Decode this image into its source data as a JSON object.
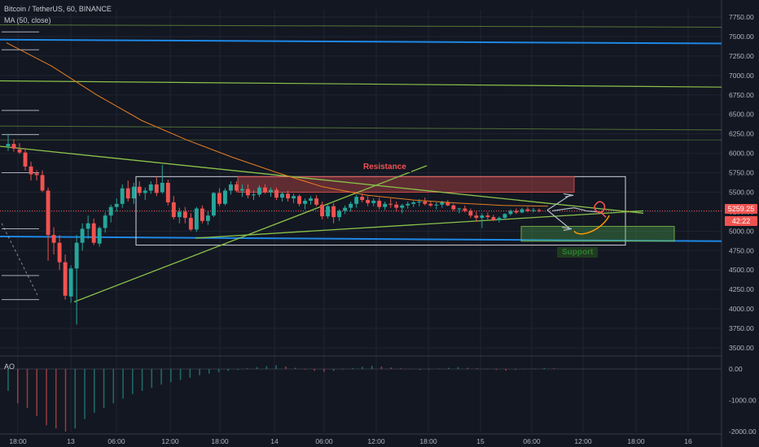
{
  "header": {
    "title": "Bitcoin / TetherUS, 60, BINANCE",
    "indicator": "MA (50, close)",
    "oscillator": "AO"
  },
  "price_axis": {
    "ticks": [
      "7750.00",
      "7500.00",
      "7250.00",
      "7000.00",
      "6750.00",
      "6500.00",
      "6250.00",
      "6000.00",
      "5750.00",
      "5500.00",
      "5250.00",
      "5000.00",
      "4750.00",
      "4500.00",
      "4250.00",
      "4000.00",
      "3750.00",
      "3500.00"
    ],
    "last_price": "5259.25",
    "countdown": "42:22"
  },
  "ao_axis": {
    "ticks": [
      "0.00",
      "-1000.00",
      "-2000.00"
    ]
  },
  "time_axis": {
    "ticks": [
      "18:00",
      "13",
      "06:00",
      "12:00",
      "18:00",
      "14",
      "06:00",
      "12:00",
      "18:00",
      "15",
      "06:00",
      "12:00",
      "18:00",
      "16"
    ]
  },
  "annotations": {
    "resistance": "Resistance",
    "support": "Support"
  },
  "colors": {
    "up": "#26a69a",
    "down": "#ef5350",
    "ma": "#e67e22",
    "trendline": "#8bc34a",
    "level": "#1e88e5",
    "background": "#131722"
  },
  "chart_data": {
    "type": "candlestick",
    "title": "Bitcoin / TetherUS, 60, BINANCE",
    "ylim": [
      3450,
      7850
    ],
    "x_ticks": [
      "18:00",
      "13",
      "06:00",
      "12:00",
      "18:00",
      "14",
      "06:00",
      "12:00",
      "18:00",
      "15",
      "06:00",
      "12:00",
      "18:00",
      "16"
    ],
    "series": [
      {
        "name": "MA (50, close)",
        "values": [
          7420,
          7120,
          6750,
          6420,
          6170,
          5950,
          5750,
          5570,
          5460,
          5400,
          5360,
          5330,
          5320
        ]
      }
    ],
    "candles": [
      [
        6090,
        6250,
        6030,
        6120
      ],
      [
        6120,
        6180,
        6020,
        6060
      ],
      [
        6050,
        6130,
        5990,
        6010
      ],
      [
        6010,
        6060,
        5780,
        5830
      ],
      [
        5830,
        5890,
        5650,
        5730
      ],
      [
        5740,
        5780,
        5650,
        5720
      ],
      [
        5720,
        5780,
        5500,
        5520
      ],
      [
        5520,
        5560,
        4620,
        4950
      ],
      [
        4950,
        5050,
        4700,
        4850
      ],
      [
        4850,
        4950,
        4500,
        4600
      ],
      [
        4600,
        4700,
        4120,
        4170
      ],
      [
        4160,
        4560,
        4080,
        4520
      ],
      [
        4520,
        4950,
        3800,
        4850
      ],
      [
        4850,
        5100,
        4750,
        5030
      ],
      [
        5030,
        5200,
        4900,
        5100
      ],
      [
        5100,
        5160,
        4820,
        4850
      ],
      [
        4840,
        5060,
        4800,
        5040
      ],
      [
        5040,
        5240,
        4980,
        5200
      ],
      [
        5200,
        5340,
        5110,
        5310
      ],
      [
        5310,
        5420,
        5250,
        5350
      ],
      [
        5350,
        5600,
        5300,
        5550
      ],
      [
        5550,
        5650,
        5380,
        5420
      ],
      [
        5420,
        5620,
        5350,
        5570
      ],
      [
        5570,
        5640,
        5450,
        5490
      ],
      [
        5490,
        5560,
        5400,
        5520
      ],
      [
        5520,
        5640,
        5480,
        5600
      ],
      [
        5600,
        5700,
        5450,
        5490
      ],
      [
        5500,
        5850,
        5480,
        5620
      ],
      [
        5620,
        5660,
        5330,
        5370
      ],
      [
        5370,
        5450,
        5150,
        5180
      ],
      [
        5180,
        5300,
        5100,
        5250
      ],
      [
        5250,
        5310,
        5100,
        5170
      ],
      [
        5170,
        5230,
        5000,
        5020
      ],
      [
        5020,
        5310,
        4990,
        5290
      ],
      [
        5290,
        5330,
        5100,
        5130
      ],
      [
        5130,
        5250,
        5080,
        5200
      ],
      [
        5200,
        5500,
        5180,
        5490
      ],
      [
        5490,
        5550,
        5320,
        5350
      ],
      [
        5350,
        5550,
        5330,
        5520
      ],
      [
        5520,
        5640,
        5470,
        5600
      ],
      [
        5600,
        5640,
        5500,
        5520
      ],
      [
        5520,
        5600,
        5440,
        5540
      ],
      [
        5540,
        5600,
        5420,
        5460
      ],
      [
        5460,
        5530,
        5400,
        5470
      ],
      [
        5470,
        5590,
        5440,
        5560
      ],
      [
        5560,
        5600,
        5480,
        5500
      ],
      [
        5500,
        5560,
        5440,
        5530
      ],
      [
        5530,
        5560,
        5400,
        5430
      ],
      [
        5430,
        5500,
        5380,
        5480
      ],
      [
        5480,
        5520,
        5380,
        5420
      ],
      [
        5420,
        5480,
        5360,
        5450
      ],
      [
        5450,
        5470,
        5320,
        5350
      ],
      [
        5350,
        5420,
        5280,
        5390
      ],
      [
        5390,
        5450,
        5340,
        5420
      ],
      [
        5420,
        5460,
        5320,
        5340
      ],
      [
        5340,
        5380,
        5150,
        5190
      ],
      [
        5190,
        5340,
        5160,
        5320
      ],
      [
        5320,
        5360,
        5100,
        5180
      ],
      [
        5180,
        5280,
        5130,
        5260
      ],
      [
        5260,
        5330,
        5220,
        5300
      ],
      [
        5300,
        5380,
        5250,
        5350
      ],
      [
        5350,
        5470,
        5300,
        5440
      ],
      [
        5440,
        5480,
        5370,
        5400
      ],
      [
        5400,
        5450,
        5320,
        5360
      ],
      [
        5360,
        5420,
        5320,
        5390
      ],
      [
        5390,
        5430,
        5280,
        5310
      ],
      [
        5310,
        5380,
        5270,
        5350
      ],
      [
        5350,
        5420,
        5300,
        5340
      ],
      [
        5340,
        5380,
        5250,
        5300
      ],
      [
        5300,
        5350,
        5230,
        5330
      ],
      [
        5330,
        5380,
        5290,
        5350
      ],
      [
        5350,
        5390,
        5310,
        5370
      ],
      [
        5370,
        5410,
        5320,
        5380
      ],
      [
        5380,
        5430,
        5330,
        5350
      ],
      [
        5350,
        5380,
        5310,
        5330
      ],
      [
        5330,
        5370,
        5280,
        5340
      ],
      [
        5340,
        5390,
        5300,
        5370
      ],
      [
        5370,
        5400,
        5320,
        5330
      ],
      [
        5330,
        5350,
        5260,
        5280
      ],
      [
        5280,
        5300,
        5230,
        5290
      ],
      [
        5290,
        5330,
        5240,
        5260
      ],
      [
        5260,
        5290,
        5170,
        5200
      ],
      [
        5200,
        5250,
        5120,
        5170
      ],
      [
        5170,
        5230,
        5040,
        5200
      ],
      [
        5200,
        5240,
        5150,
        5180
      ],
      [
        5180,
        5210,
        5130,
        5140
      ],
      [
        5140,
        5190,
        5110,
        5170
      ],
      [
        5170,
        5230,
        5150,
        5220
      ],
      [
        5220,
        5280,
        5200,
        5260
      ],
      [
        5260,
        5290,
        5220,
        5240
      ],
      [
        5240,
        5300,
        5230,
        5280
      ],
      [
        5280,
        5310,
        5240,
        5260
      ],
      [
        5260,
        5300,
        5240,
        5270
      ],
      [
        5270,
        5290,
        5240,
        5259.25
      ]
    ],
    "levels": [
      7650,
      7410,
      7100,
      6950,
      6300,
      5900
    ],
    "ao": [
      -700,
      -1100,
      -1250,
      -1500,
      -1800,
      -1900,
      -2000,
      -1900,
      -1600,
      -1400,
      -1250,
      -1100,
      -950,
      -800,
      -700,
      -600,
      -500,
      -420,
      -350,
      -280,
      -200,
      -150,
      -100,
      -60,
      -30,
      20,
      60,
      90,
      120,
      80,
      40,
      -20,
      -60,
      -90,
      -60,
      -20,
      30,
      70,
      100,
      80,
      50,
      20,
      -10,
      -30,
      -20,
      10,
      40,
      60,
      40,
      20,
      -10,
      -30,
      -50,
      -30,
      -10,
      10,
      30,
      20
    ]
  }
}
